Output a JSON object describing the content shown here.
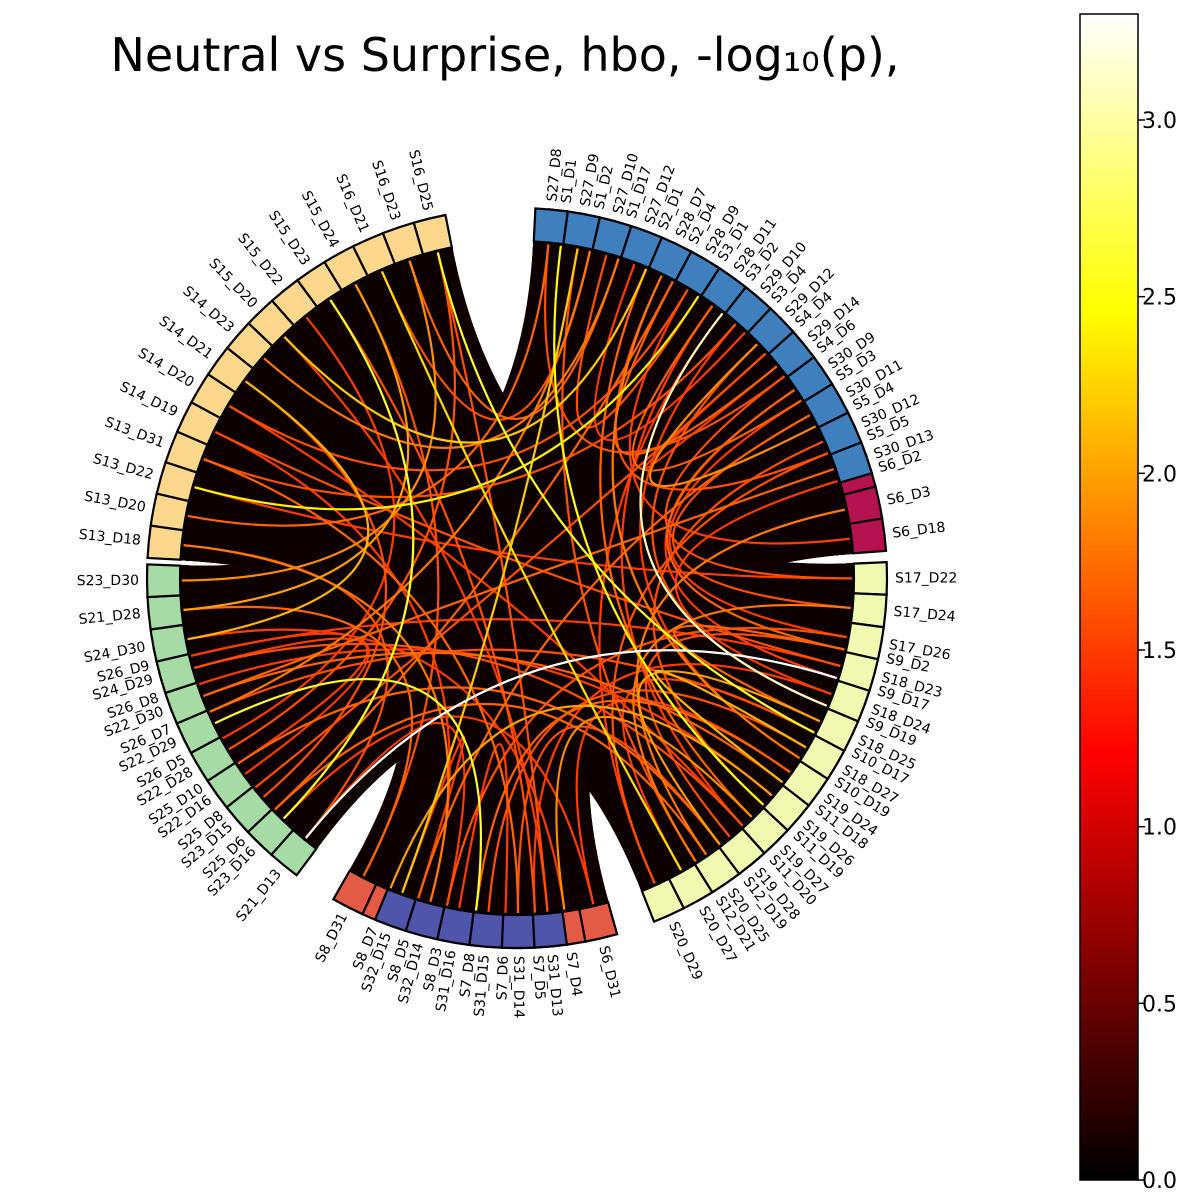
{
  "chart_data": {
    "type": "chord",
    "title": "Neutral vs Surprise, hbo, -log₁₀(p),",
    "colorbar": {
      "colormap": "hot",
      "range": [
        0.0,
        3.3
      ],
      "ticks": [
        "0.0",
        "0.5",
        "1.0",
        "1.5",
        "2.0",
        "2.5",
        "3.0"
      ]
    },
    "groups": [
      {
        "color": "#b4134f",
        "nodes": [
          "S1_D1",
          "S1_D2",
          "S1_D17",
          "S2_D1",
          "S2_D4",
          "S3_D1",
          "S3_D2",
          "S3_D4",
          "S4_D4",
          "S4_D6",
          "S5_D3",
          "S5_D4",
          "S5_D5",
          "S6_D2",
          "S6_D3",
          "S6_D18"
        ]
      },
      {
        "color": "#f4823f",
        "nodes": [
          "S9_D2",
          "S9_D17",
          "S9_D19",
          "S10_D17",
          "S10_D19",
          "S11_D18",
          "S11_D19",
          "S11_D20",
          "S12_D19",
          "S12_D21"
        ]
      },
      {
        "color": "#e35a45",
        "nodes": [
          "S6_D31",
          "S7_D4",
          "S7_D5",
          "S7_D6",
          "S7_D8",
          "S8_D3",
          "S8_D5",
          "S8_D7",
          "S8_D31"
        ]
      },
      {
        "color": "#5ec19f",
        "nodes": [
          "S25_D6",
          "S25_D8",
          "S25_D10",
          "S26_D5",
          "S26_D7",
          "S26_D8",
          "S26_D9"
        ]
      },
      {
        "color": "#fdd78b",
        "nodes": [
          "S13_D18",
          "S13_D20",
          "S13_D22",
          "S13_D31",
          "S14_D19",
          "S14_D20",
          "S14_D21",
          "S14_D23",
          "S15_D20",
          "S15_D22",
          "S15_D23",
          "S15_D24",
          "S16_D21",
          "S16_D23",
          "S16_D25"
        ]
      },
      {
        "color": "#3f7fbd",
        "nodes": [
          "S27_D8",
          "S27_D9",
          "S27_D10",
          "S27_D12",
          "S28_D7",
          "S28_D9",
          "S28_D11",
          "S29_D10",
          "S29_D12",
          "S29_D14",
          "S30_D9",
          "S30_D11",
          "S30_D12",
          "S30_D13"
        ]
      },
      {
        "color": "#f1f9b0",
        "nodes": [
          "S17_D22",
          "S17_D24",
          "S17_D26",
          "S18_D23",
          "S18_D24",
          "S18_D25",
          "S18_D27",
          "S19_D24",
          "S19_D26",
          "S19_D27",
          "S19_D28",
          "S20_D25",
          "S20_D27",
          "S20_D29"
        ]
      },
      {
        "color": "#4f55aa",
        "nodes": [
          "S31_D13",
          "S31_D14",
          "S31_D15",
          "S31_D16",
          "S32_D14",
          "S32_D15"
        ]
      },
      {
        "color": "#a6dba6",
        "nodes": [
          "S21_D13",
          "S23_D16",
          "S23_D15",
          "S22_D16",
          "S22_D28",
          "S22_D29",
          "S22_D30",
          "S24_D29",
          "S24_D30",
          "S21_D28",
          "S23_D30"
        ]
      }
    ],
    "links": [
      [
        "S9_D17",
        "S21_D13",
        3.3
      ],
      [
        "S9_D19",
        "S3_D2",
        3.1
      ],
      [
        "S10_D17",
        "S16_D25",
        2.6
      ],
      [
        "S1_D1",
        "S11_D19",
        2.5
      ],
      [
        "S23_D16",
        "S15_D23",
        2.6
      ],
      [
        "S22_D29",
        "S7_D8",
        2.6
      ],
      [
        "S2_D1",
        "S15_D20",
        2.2
      ],
      [
        "S3_D1",
        "S13_D22",
        2.4
      ],
      [
        "S16_D21",
        "S20_D27",
        2.3
      ],
      [
        "S19_D26",
        "S8_D7",
        2.0
      ],
      [
        "S14_D21",
        "S24_D30",
        2.1
      ],
      [
        "S27_D9",
        "S32_D15",
        2.2
      ],
      [
        "S12_D19",
        "S18_D25",
        2.0
      ],
      [
        "S26_D7",
        "S1_D2",
        1.8
      ],
      [
        "S5_D4",
        "S29_D12",
        1.9
      ],
      [
        "S6_D3",
        "S20_D25",
        1.8
      ],
      [
        "S11_D18",
        "S18_D27",
        2.1
      ],
      [
        "S15_D24",
        "S21_D28",
        2.0
      ],
      [
        "S13_D31",
        "S31_D14",
        1.7
      ],
      [
        "S7_D4",
        "S19_D27",
        1.9
      ],
      [
        "S8_D5",
        "S30_D11",
        1.7
      ],
      [
        "S25_D8",
        "S4_D4",
        1.6
      ],
      [
        "S28_D7",
        "S10_D19",
        1.8
      ],
      [
        "S30_D9",
        "S9_D2",
        1.7
      ],
      [
        "S17_D24",
        "S12_D21",
        1.8
      ],
      [
        "S18_D23",
        "S14_D19",
        1.6
      ],
      [
        "S29_D14",
        "S2_D4",
        1.7
      ],
      [
        "S19_D24",
        "S6_D31",
        1.5
      ],
      [
        "S20_D29",
        "S5_D5",
        1.6
      ],
      [
        "S31_D16",
        "S7_D6",
        1.5
      ],
      [
        "S32_D14",
        "S13_D18",
        1.8
      ],
      [
        "S22_D16",
        "S26_D9",
        1.5
      ],
      [
        "S24_D29",
        "S11_D20",
        1.6
      ],
      [
        "S21_D28",
        "S8_D31",
        1.7
      ],
      [
        "S23_D30",
        "S16_D23",
        1.9
      ],
      [
        "S3_D4",
        "S27_D12",
        1.5
      ],
      [
        "S4_D6",
        "S17_D22",
        1.6
      ],
      [
        "S5_D3",
        "S28_D11",
        1.7
      ],
      [
        "S6_D2",
        "S18_D24",
        1.5
      ],
      [
        "S1_D17",
        "S14_D23",
        1.8
      ],
      [
        "S9_D2",
        "S19_D28",
        1.6
      ],
      [
        "S10_D19",
        "S29_D10",
        1.5
      ],
      [
        "S11_D19",
        "S30_D12",
        1.6
      ],
      [
        "S12_D19",
        "S25_D10",
        1.7
      ],
      [
        "S7_D5",
        "S18_D24",
        1.5
      ],
      [
        "S8_D3",
        "S17_D26",
        1.6
      ],
      [
        "S26_D5",
        "S15_D22",
        1.5
      ],
      [
        "S13_D20",
        "S27_D8",
        1.7
      ],
      [
        "S14_D20",
        "S28_D9",
        1.6
      ],
      [
        "S15_D20",
        "S31_D13",
        1.5
      ],
      [
        "S16_D25",
        "S22_D28",
        1.6
      ],
      [
        "S25_D6",
        "S20_D25",
        1.7
      ],
      [
        "S26_D8",
        "S19_D26",
        1.5
      ],
      [
        "S27_D10",
        "S3_D1",
        1.6
      ],
      [
        "S28_D9",
        "S6_D18",
        1.5
      ],
      [
        "S29_D12",
        "S9_D19",
        1.6
      ],
      [
        "S30_D13",
        "S22_D30",
        1.7
      ],
      [
        "S17_D22",
        "S13_D22",
        1.5
      ],
      [
        "S18_D27",
        "S31_D15",
        1.6
      ],
      [
        "S19_D27",
        "S2_D1",
        1.7
      ],
      [
        "S20_D27",
        "S10_D17",
        1.5
      ],
      [
        "S31_D14",
        "S12_D19",
        1.6
      ],
      [
        "S32_D15",
        "S8_D5",
        1.5
      ],
      [
        "S22_D30",
        "S11_D18",
        1.7
      ],
      [
        "S23_D15",
        "S14_D21",
        1.6
      ],
      [
        "S24_D30",
        "S7_D4",
        1.5
      ],
      [
        "S1_D2",
        "S16_D21",
        1.6
      ],
      [
        "S4_D4",
        "S29_D14",
        1.5
      ],
      [
        "S5_D5",
        "S28_D7",
        1.6
      ],
      [
        "S9_D17",
        "S30_D9",
        1.5
      ],
      [
        "S12_D21",
        "S27_D9",
        1.6
      ],
      [
        "S7_D8",
        "S19_D24",
        1.7
      ],
      [
        "S6_D31",
        "S23_D16",
        1.5
      ],
      [
        "S8_D31",
        "S15_D24",
        1.6
      ],
      [
        "S26_D9",
        "S18_D23",
        1.5
      ],
      [
        "S13_D18",
        "S21_D13",
        1.6
      ],
      [
        "S14_D19",
        "S32_D14",
        1.5
      ],
      [
        "S16_D23",
        "S1_D17",
        1.7
      ],
      [
        "S25_D10",
        "S24_D29",
        1.5
      ],
      [
        "S27_D8",
        "S4_D6",
        1.6
      ],
      [
        "S28_D11",
        "S11_D20",
        1.5
      ],
      [
        "S30_D11",
        "S17_D24",
        1.6
      ],
      [
        "S3_D2",
        "S20_D29",
        1.5
      ],
      [
        "S2_D4",
        "S25_D6",
        1.7
      ],
      [
        "S10_D17",
        "S26_D7",
        1.6
      ],
      [
        "S11_D20",
        "S14_D20",
        1.5
      ],
      [
        "S29_D10",
        "S13_D31",
        1.6
      ],
      [
        "S17_D26",
        "S5_D3",
        1.5
      ],
      [
        "S18_D25",
        "S9_D2",
        1.7
      ],
      [
        "S31_D13",
        "S16_D25",
        1.6
      ],
      [
        "S21_D13",
        "S8_D3",
        1.5
      ],
      [
        "S15_D23",
        "S7_D5",
        1.6
      ]
    ]
  }
}
